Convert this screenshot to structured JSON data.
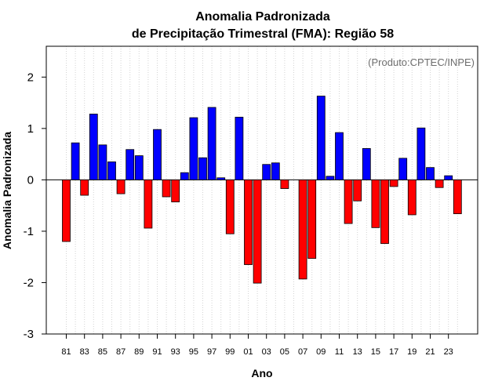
{
  "chart_data": {
    "type": "bar",
    "title_line1": "Anomalia Padronizada",
    "title_line2": "de Precipitação Trimestral (FMA): Região 58",
    "xlabel": "Ano",
    "ylabel": "Anomalia Padronizada",
    "credit": "(Produto:CPTEC/INPE)",
    "ylim": [
      -3,
      2.6
    ],
    "yticks": [
      -3,
      -2,
      -1,
      0,
      1,
      2
    ],
    "x_tick_labels": [
      "81",
      "83",
      "85",
      "87",
      "89",
      "91",
      "93",
      "95",
      "97",
      "99",
      "01",
      "03",
      "05",
      "07",
      "09",
      "11",
      "13",
      "15",
      "17",
      "19",
      "21",
      "23"
    ],
    "x_tick_every": 2,
    "categories": [
      "1981",
      "1982",
      "1983",
      "1984",
      "1985",
      "1986",
      "1987",
      "1988",
      "1989",
      "1990",
      "1991",
      "1992",
      "1993",
      "1994",
      "1995",
      "1996",
      "1997",
      "1998",
      "1999",
      "2000",
      "2001",
      "2002",
      "2003",
      "2004",
      "2005",
      "2006",
      "2007",
      "2008",
      "2009",
      "2010",
      "2011",
      "2012",
      "2013",
      "2014",
      "2015",
      "2016",
      "2017",
      "2018",
      "2019",
      "2020",
      "2021",
      "2022",
      "2023",
      "2024"
    ],
    "values": [
      -1.2,
      0.72,
      -0.3,
      1.28,
      0.68,
      0.35,
      -0.27,
      0.59,
      0.47,
      -0.94,
      0.98,
      -0.33,
      -0.43,
      0.14,
      1.21,
      0.43,
      1.41,
      0.04,
      -1.05,
      1.22,
      -1.65,
      -2.01,
      0.3,
      0.33,
      -0.17,
      0.0,
      -1.93,
      -1.53,
      1.63,
      0.07,
      0.92,
      -0.85,
      -0.41,
      0.61,
      -0.93,
      -1.24,
      -0.13,
      0.42,
      -0.68,
      1.01,
      0.24,
      -0.15,
      0.08,
      -0.66
    ],
    "colors": {
      "positive": "#0000ff",
      "negative": "#ff0000",
      "grid": "#d3d3d3"
    },
    "grid": true
  }
}
